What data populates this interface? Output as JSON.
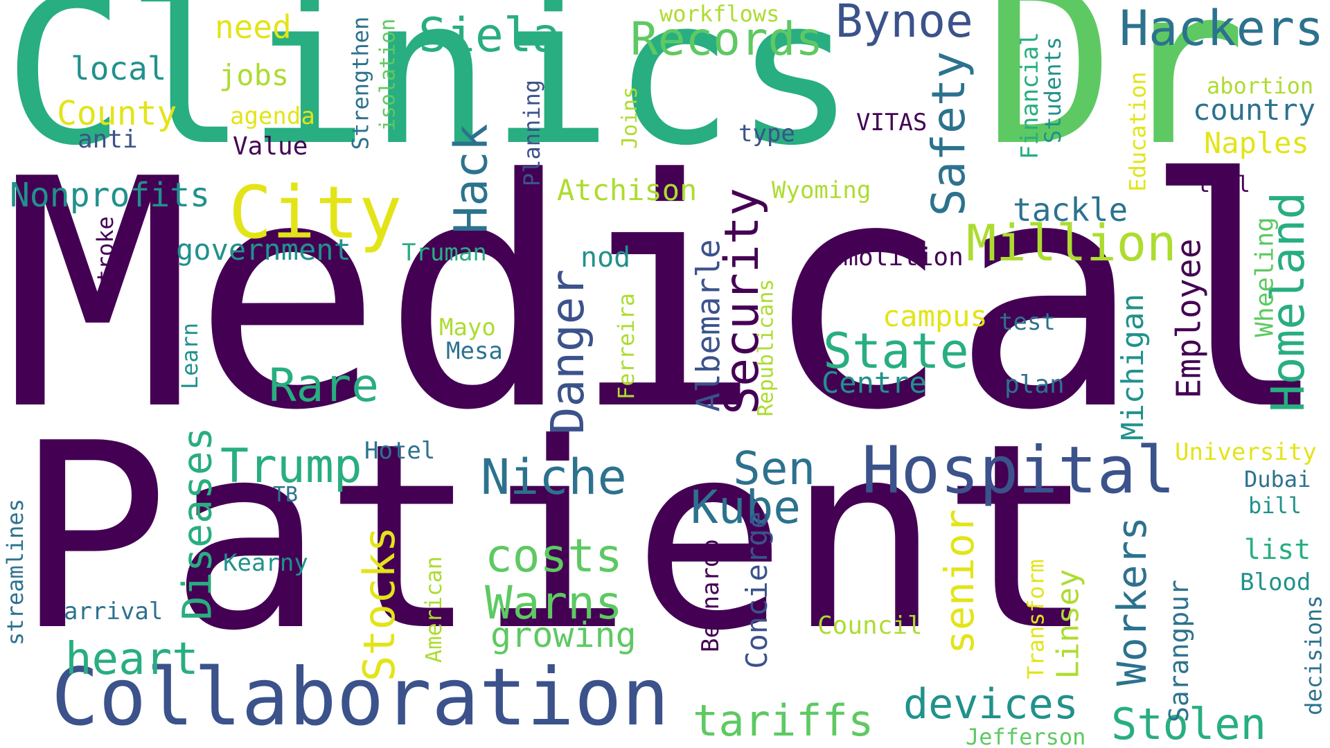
{
  "colors": {
    "c1": "#440154",
    "c2": "#3b528b",
    "c3": "#2c728e",
    "c4": "#21918c",
    "c5": "#28ae80",
    "c6": "#5ec962",
    "c7": "#addc30",
    "c8": "#e3e418"
  },
  "words": {
    "medical": "Medical",
    "patient": "Patient",
    "clinics": "Clinics",
    "dr": "Dr",
    "collaboration": "Collaboration",
    "hospital": "Hospital",
    "city": "City",
    "security": "Security",
    "homeland": "Homeland",
    "million": "Million",
    "danger": "Danger",
    "records": "Records",
    "hackers": "Hackers",
    "bynoe": "Bynoe",
    "siela": "Siela",
    "safety": "Safety",
    "hack": "Hack",
    "state": "State",
    "rare": "Rare",
    "trump": "Trump",
    "niche": "Niche",
    "sen": "Sen",
    "kube": "Kube",
    "costs": "costs",
    "warns": "Warns",
    "growing": "growing",
    "heart": "heart",
    "diseases": "Diseases",
    "stocks": "Stocks",
    "senior": "senior",
    "workers": "Workers",
    "devices": "devices",
    "stolen": "Stolen",
    "tariffs": "tariffs",
    "albemarle": "Albemarle",
    "employee": "Employee",
    "michigan": "Michigan",
    "linsey": "Linsey",
    "nonprofits": "Nonprofits",
    "government": "government",
    "county": "County",
    "local": "local",
    "need": "need",
    "jobs": "jobs",
    "agenda": "agenda",
    "anti": "anti",
    "value": "Value",
    "strengthen": "Strengthen",
    "isolation": "isolation",
    "workflows": "workflows",
    "joins": "Joins",
    "planning": "Planning",
    "atchison": "Atchison",
    "type": "type",
    "vitas": "VITAS",
    "wyoming": "Wyoming",
    "financial": "Financial",
    "students": "Students",
    "education": "Education",
    "abortion": "abortion",
    "country": "country",
    "naples": "Naples",
    "tool": "tool",
    "tackle": "tackle",
    "wheeling": "Wheeling",
    "truman": "Truman",
    "nod": "nod",
    "demolition": "demolition",
    "stroke": "stroke",
    "republicans": "Republicans",
    "ferreira": "Ferreira",
    "campus": "campus",
    "test": "test",
    "mayo": "Mayo",
    "mesa": "Mesa",
    "learn": "Learn",
    "centre": "Centre",
    "plan": "plan",
    "hotel": "Hotel",
    "tb": "TB",
    "university": "University",
    "dubai": "Dubai",
    "bill": "bill",
    "list": "list",
    "blood": "Blood",
    "decisions": "decisions",
    "sarangpur": "Sarangpur",
    "transform": "Transform",
    "council": "Council",
    "concierge": "Concierge",
    "bernardo": "Bernardo",
    "american": "American",
    "kearny": "Kearny",
    "arrival": "arrival",
    "streamlines": "streamlines",
    "jefferson": "Jefferson"
  }
}
